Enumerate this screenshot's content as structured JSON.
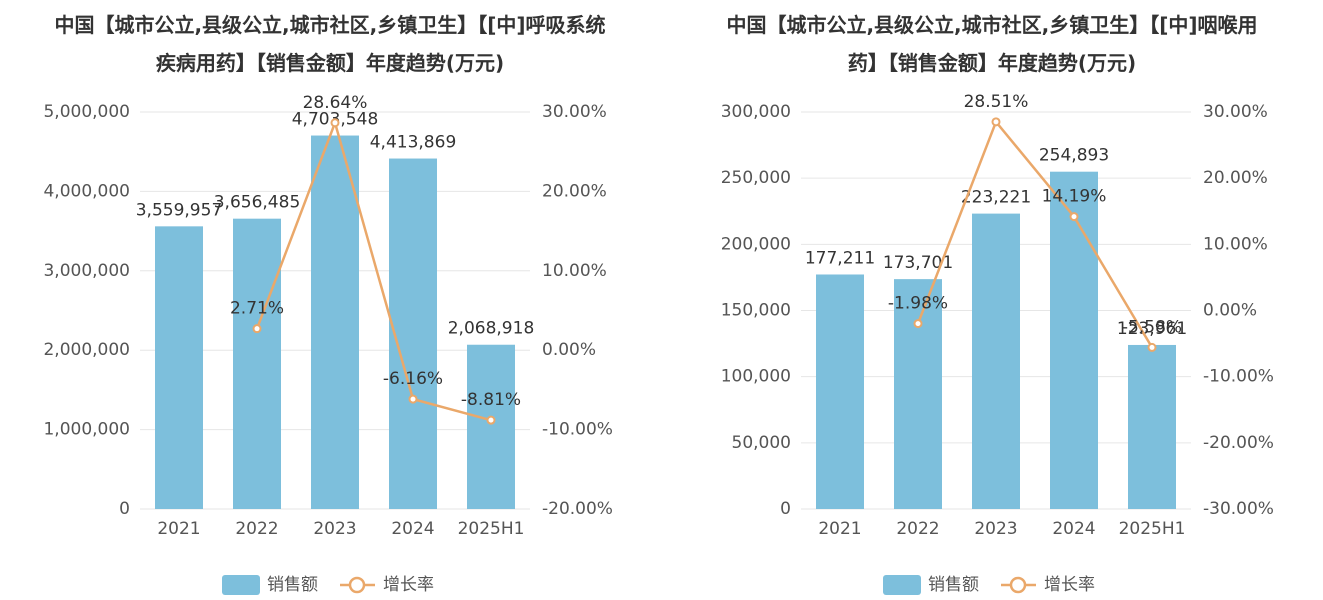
{
  "chart_data": [
    {
      "type": "bar-line",
      "title": "中国【城市公立,县级公立,城市社区,乡镇卫生】【[中]呼吸系统疾病用药】【销售金额】年度趋势(万元)",
      "categories": [
        "2021",
        "2022",
        "2023",
        "2024",
        "2025H1"
      ],
      "series": [
        {
          "name": "销售额",
          "color": "#7dbfdc",
          "values": [
            3559957,
            3656485,
            4703548,
            4413869,
            2068918
          ],
          "value_labels": [
            "3,559,957",
            "3,656,485",
            "4,703,548",
            "4,413,869",
            "2,068,918"
          ]
        },
        {
          "name": "增长率",
          "color": "#eaa86a",
          "axis": "y2",
          "values": [
            null,
            2.71,
            28.64,
            -6.16,
            -8.81
          ],
          "value_labels": [
            null,
            "2.71%",
            "28.64%",
            "-6.16%",
            "-8.81%"
          ]
        }
      ],
      "ylim": [
        0,
        5000000
      ],
      "yticks": [
        0,
        {
          "value": 1000000,
          "label": "1,000,000"
        },
        {
          "value": 2000000,
          "label": "2,000,000"
        },
        {
          "value": 3000000,
          "label": "3,000,000"
        },
        {
          "value": 4000000,
          "label": "4,000,000"
        },
        {
          "value": 5000000,
          "label": "5,000,000"
        }
      ],
      "y2lim": [
        -20,
        30
      ],
      "y2ticks": [
        {
          "value": -20,
          "label": "-20.00%"
        },
        {
          "value": -10,
          "label": "-10.00%"
        },
        {
          "value": 0,
          "label": "0.00%"
        },
        {
          "value": 10,
          "label": "10.00%"
        },
        {
          "value": 20,
          "label": "20.00%"
        },
        {
          "value": 30,
          "label": "30.00%"
        }
      ],
      "grid": true
    },
    {
      "type": "bar-line",
      "title": "中国【城市公立,县级公立,城市社区,乡镇卫生】【[中]咽喉用药】【销售金额】年度趋势(万元)",
      "categories": [
        "2021",
        "2022",
        "2023",
        "2024",
        "2025H1"
      ],
      "series": [
        {
          "name": "销售额",
          "color": "#7dbfdc",
          "values": [
            177211,
            173701,
            223221,
            254893,
            123961
          ],
          "value_labels": [
            "177,211",
            "173,701",
            "223,221",
            "254,893",
            "123,961"
          ]
        },
        {
          "name": "增长率",
          "color": "#eaa86a",
          "axis": "y2",
          "values": [
            null,
            -1.98,
            28.51,
            14.19,
            -5.58
          ],
          "value_labels": [
            null,
            "-1.98%",
            "28.51%",
            "14.19%",
            "-5.58%"
          ]
        }
      ],
      "ylim": [
        0,
        300000
      ],
      "yticks": [
        0,
        {
          "value": 50000,
          "label": "50,000"
        },
        {
          "value": 100000,
          "label": "100,000"
        },
        {
          "value": 150000,
          "label": "150,000"
        },
        {
          "value": 200000,
          "label": "200,000"
        },
        {
          "value": 250000,
          "label": "250,000"
        },
        {
          "value": 300000,
          "label": "300,000"
        }
      ],
      "y2lim": [
        -30,
        30
      ],
      "y2ticks": [
        {
          "value": -30,
          "label": "-30.00%"
        },
        {
          "value": -20,
          "label": "-20.00%"
        },
        {
          "value": -10,
          "label": "-10.00%"
        },
        {
          "value": 0,
          "label": "0.00%"
        },
        {
          "value": 10,
          "label": "10.00%"
        },
        {
          "value": 20,
          "label": "20.00%"
        },
        {
          "value": 30,
          "label": "30.00%"
        }
      ],
      "grid": true
    }
  ]
}
